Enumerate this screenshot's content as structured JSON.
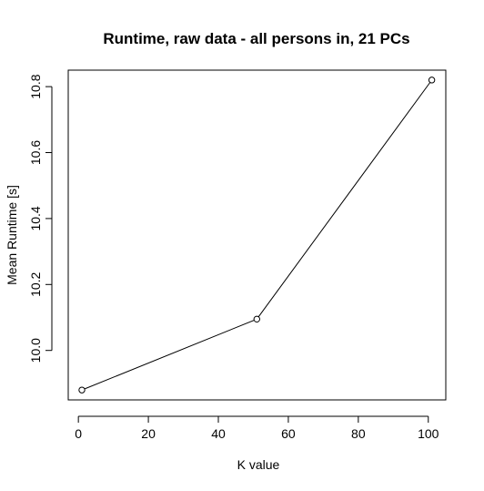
{
  "chart_data": {
    "type": "line",
    "title": "Runtime, raw data - all persons in, 21 PCs",
    "xlabel": "K value",
    "ylabel": "Mean Runtime [s]",
    "x": [
      1,
      51,
      101
    ],
    "y": [
      9.88,
      10.095,
      10.82
    ],
    "xlim": [
      -2.9,
      105
    ],
    "ylim": [
      9.85,
      10.85
    ],
    "xticks": [
      0,
      20,
      40,
      60,
      80,
      100
    ],
    "xtick_labels": [
      "0",
      "20",
      "40",
      "60",
      "80",
      "100"
    ],
    "yticks": [
      10.0,
      10.2,
      10.4,
      10.6,
      10.8
    ],
    "ytick_labels": [
      "10.0",
      "10.2",
      "10.4",
      "10.6",
      "10.8"
    ],
    "grid": false,
    "markers": "open-circle"
  }
}
